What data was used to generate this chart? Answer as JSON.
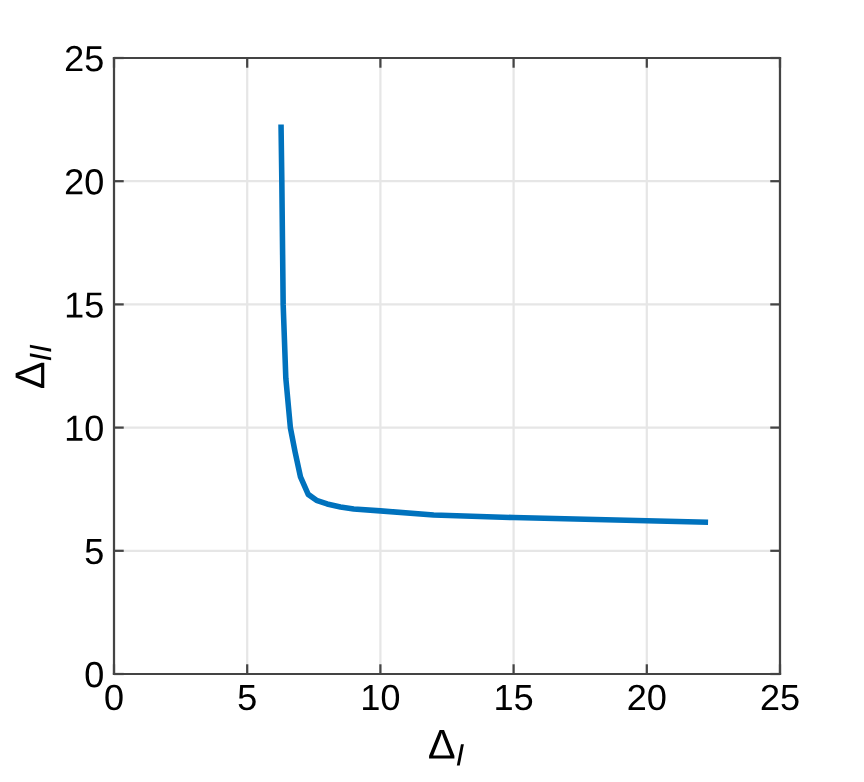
{
  "chart_data": {
    "type": "line",
    "xlabel": "Δ$_{I}$",
    "ylabel": "Δ$_{II}$",
    "series": [
      {
        "color": "#0072bd",
        "x": [
          6.27,
          6.3,
          6.35,
          6.45,
          6.62,
          6.8,
          7.0,
          7.29,
          7.6,
          8.0,
          8.5,
          9.0,
          10,
          12,
          15,
          20,
          22.3
        ],
        "values": [
          22.3,
          20,
          15,
          12,
          10,
          9,
          8,
          7.29,
          7.05,
          6.9,
          6.78,
          6.7,
          6.62,
          6.45,
          6.35,
          6.22,
          6.16
        ]
      }
    ],
    "xlim": [
      0,
      25
    ],
    "ylim": [
      0,
      25
    ],
    "xticks": [
      0,
      5,
      10,
      15,
      20,
      25
    ],
    "yticks": [
      0,
      5,
      10,
      15,
      20,
      25
    ],
    "grid": true
  }
}
